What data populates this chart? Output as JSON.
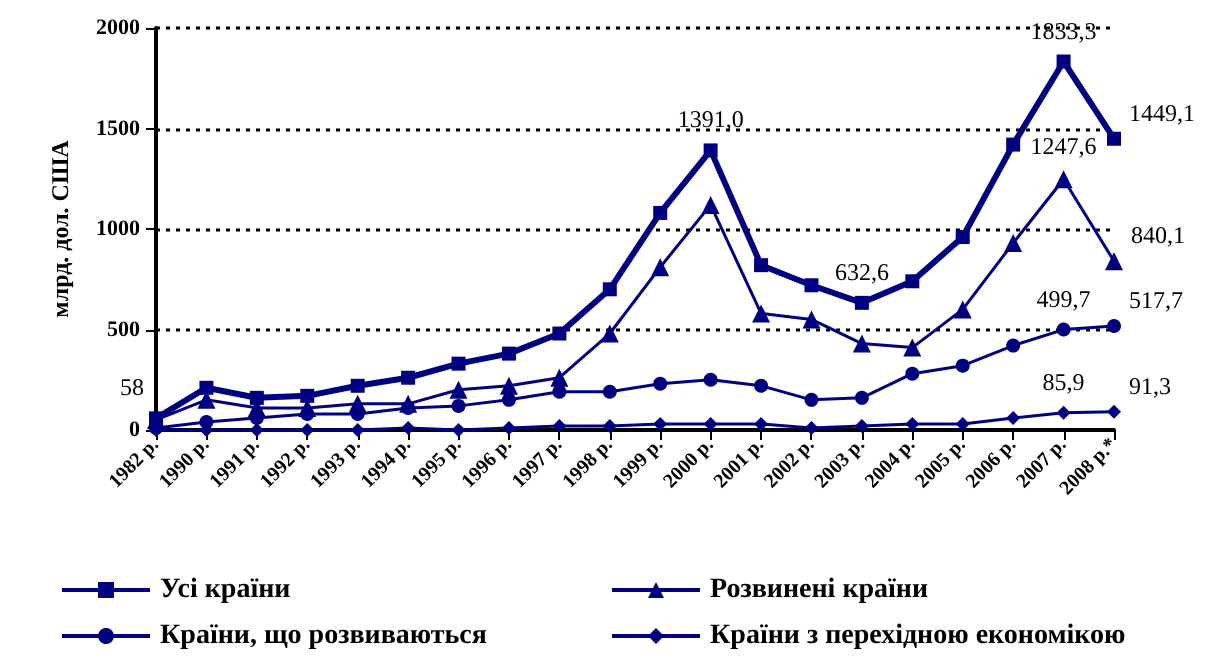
{
  "chart_data": {
    "type": "line",
    "ylabel": "млрд. дол. США",
    "categories": [
      "1982 р.",
      "1990 р.",
      "1991 р.",
      "1992 р.",
      "1993 р.",
      "1994 р.",
      "1995 р.",
      "1996 р.",
      "1997 р.",
      "1998 р.",
      "1999 р.",
      "2000 р.",
      "2001 р.",
      "2002 р.",
      "2003 р.",
      "2004 р.",
      "2005 р.",
      "2006 р.",
      "2007 р.",
      "2008 р.*"
    ],
    "series": [
      {
        "name": "Усі країни",
        "color": "#000080",
        "marker": "square",
        "values": [
          58,
          210,
          160,
          170,
          220,
          260,
          330,
          380,
          480,
          700,
          1080,
          1391.0,
          820,
          720,
          632.6,
          740,
          960,
          1420,
          1833.3,
          1449.1
        ],
        "value_labels": [
          "58",
          null,
          null,
          null,
          null,
          null,
          null,
          null,
          null,
          null,
          null,
          "1391,0",
          null,
          null,
          "632,6",
          null,
          null,
          null,
          "1833,3",
          "1449,1"
        ]
      },
      {
        "name": "Розвинені країни",
        "color": "#000080",
        "marker": "triangle",
        "values": [
          50,
          150,
          110,
          110,
          130,
          130,
          200,
          220,
          260,
          480,
          810,
          1120,
          580,
          550,
          430,
          410,
          600,
          930,
          1247.6,
          840.1
        ],
        "value_labels": [
          null,
          null,
          null,
          null,
          null,
          null,
          null,
          null,
          null,
          null,
          null,
          null,
          null,
          null,
          null,
          null,
          null,
          null,
          "1247,6",
          "840,1"
        ]
      },
      {
        "name": "Країни, що розвиваються",
        "color": "#000080",
        "marker": "circle",
        "values": [
          10,
          40,
          60,
          80,
          80,
          110,
          120,
          150,
          190,
          190,
          230,
          250,
          220,
          150,
          160,
          280,
          320,
          420,
          499.7,
          517.7
        ],
        "value_labels": [
          null,
          null,
          null,
          null,
          null,
          null,
          null,
          null,
          null,
          null,
          null,
          null,
          null,
          null,
          null,
          null,
          null,
          null,
          "499,7",
          "517,7"
        ]
      },
      {
        "name": "Країни з перехідною економікою",
        "color": "#000080",
        "marker": "diamond",
        "values": [
          0,
          0,
          0,
          0,
          0,
          10,
          0,
          10,
          20,
          20,
          30,
          30,
          30,
          10,
          20,
          30,
          30,
          60,
          85.9,
          91.3
        ],
        "value_labels": [
          null,
          null,
          null,
          null,
          null,
          null,
          null,
          null,
          null,
          null,
          null,
          null,
          null,
          null,
          null,
          null,
          null,
          null,
          "85,9",
          "91,3"
        ]
      }
    ],
    "ylim": [
      0,
      2000
    ],
    "yticks": [
      0,
      500,
      1000,
      1500,
      2000
    ],
    "grid": "y",
    "legend": "bottom"
  }
}
